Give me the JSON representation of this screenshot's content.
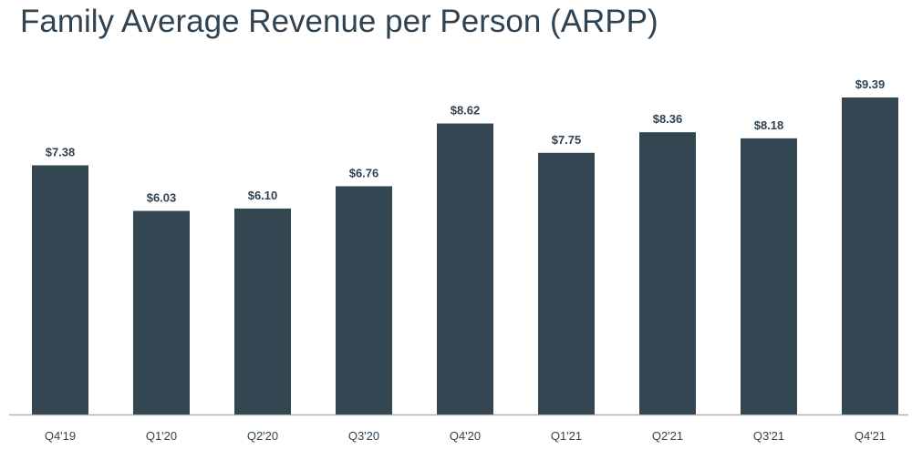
{
  "chart_data": {
    "type": "bar",
    "title": "Family Average Revenue per Person (ARPP)",
    "categories": [
      "Q4'19",
      "Q1'20",
      "Q2'20",
      "Q3'20",
      "Q4'20",
      "Q1'21",
      "Q2'21",
      "Q3'21",
      "Q4'21"
    ],
    "values": [
      7.38,
      6.03,
      6.1,
      6.76,
      8.62,
      7.75,
      8.36,
      8.18,
      9.39
    ],
    "data_labels": [
      "$7.38",
      "$6.03",
      "$6.10",
      "$6.76",
      "$8.62",
      "$7.75",
      "$8.36",
      "$8.18",
      "$9.39"
    ],
    "xlabel": "",
    "ylabel": "",
    "ylim": [
      0,
      9.39
    ],
    "grid": false,
    "colors": {
      "bar": "#344652",
      "axis": "#b3b3b3",
      "label": "#2f4352",
      "tick": "#2f4352"
    }
  }
}
